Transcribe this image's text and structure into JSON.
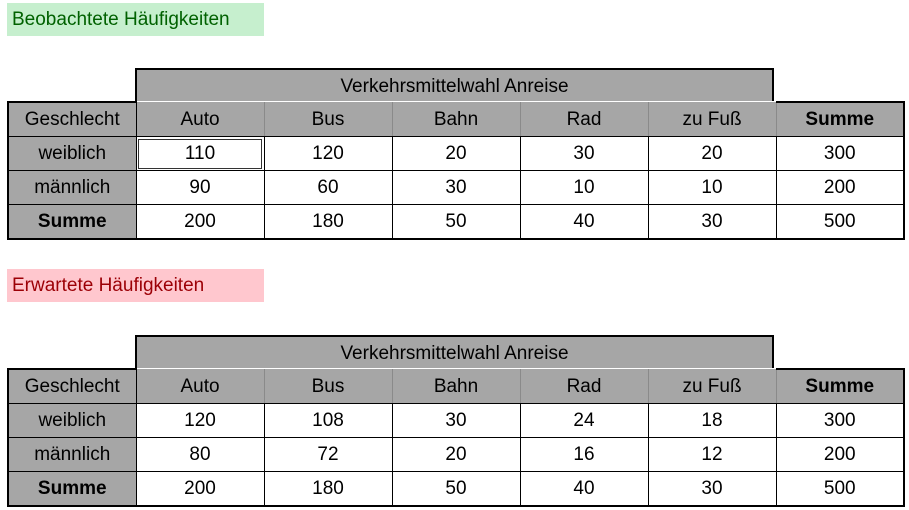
{
  "observed": {
    "title": "Beobachtete Häufigkeiten",
    "group_header": "Verkehrsmittelwahl Anreise",
    "columns": [
      "Geschlecht",
      "Auto",
      "Bus",
      "Bahn",
      "Rad",
      "zu Fuß",
      "Summe"
    ],
    "rows": [
      {
        "label": "weiblich",
        "values": [
          "110",
          "120",
          "20",
          "30",
          "20",
          "300"
        ]
      },
      {
        "label": "männlich",
        "values": [
          "90",
          "60",
          "30",
          "10",
          "10",
          "200"
        ]
      },
      {
        "label": "Summe",
        "values": [
          "200",
          "180",
          "50",
          "40",
          "30",
          "500"
        ]
      }
    ],
    "label_bg": "#c6efce",
    "label_color": "#006100"
  },
  "expected": {
    "title": "Erwartete Häufigkeiten",
    "group_header": "Verkehrsmittelwahl Anreise",
    "columns": [
      "Geschlecht",
      "Auto",
      "Bus",
      "Bahn",
      "Rad",
      "zu Fuß",
      "Summe"
    ],
    "rows": [
      {
        "label": "weiblich",
        "values": [
          "120",
          "108",
          "30",
          "24",
          "18",
          "300"
        ]
      },
      {
        "label": "männlich",
        "values": [
          "80",
          "72",
          "20",
          "16",
          "12",
          "200"
        ]
      },
      {
        "label": "Summe",
        "values": [
          "200",
          "180",
          "50",
          "40",
          "30",
          "500"
        ]
      }
    ],
    "label_bg": "#ffc7ce",
    "label_color": "#9c0006"
  },
  "header_fill": "#a6a6a6"
}
